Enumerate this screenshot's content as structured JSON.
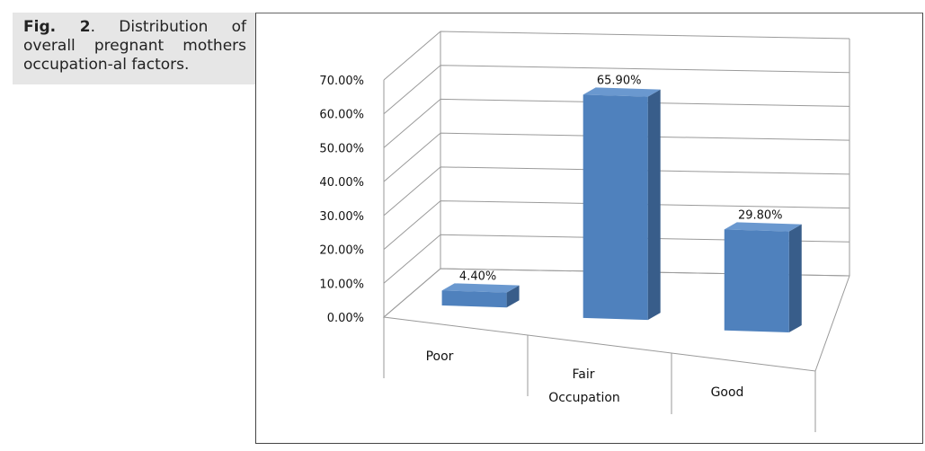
{
  "caption": {
    "label": "Fig. 2",
    "text": ". Distribution of overall pregnant mothers occupation-al factors."
  },
  "colors": {
    "bar_front": "#4f81bd",
    "bar_side": "#385d8a",
    "bar_top": "#6a98cf",
    "grid": "#9a9a9a"
  },
  "chart_data": {
    "type": "bar",
    "style": "3d-column",
    "title": "",
    "xlabel": "Occupation",
    "ylabel": "",
    "categories": [
      "Poor",
      "Fair",
      "Good"
    ],
    "values": [
      4.4,
      65.9,
      29.8
    ],
    "data_labels": [
      "4.40%",
      "65.90%",
      "29.80%"
    ],
    "ylim": [
      0,
      70
    ],
    "yticks": [
      "0.00%",
      "10.00%",
      "20.00%",
      "30.00%",
      "40.00%",
      "50.00%",
      "60.00%",
      "70.00%"
    ],
    "grid": true,
    "legend": "none"
  }
}
